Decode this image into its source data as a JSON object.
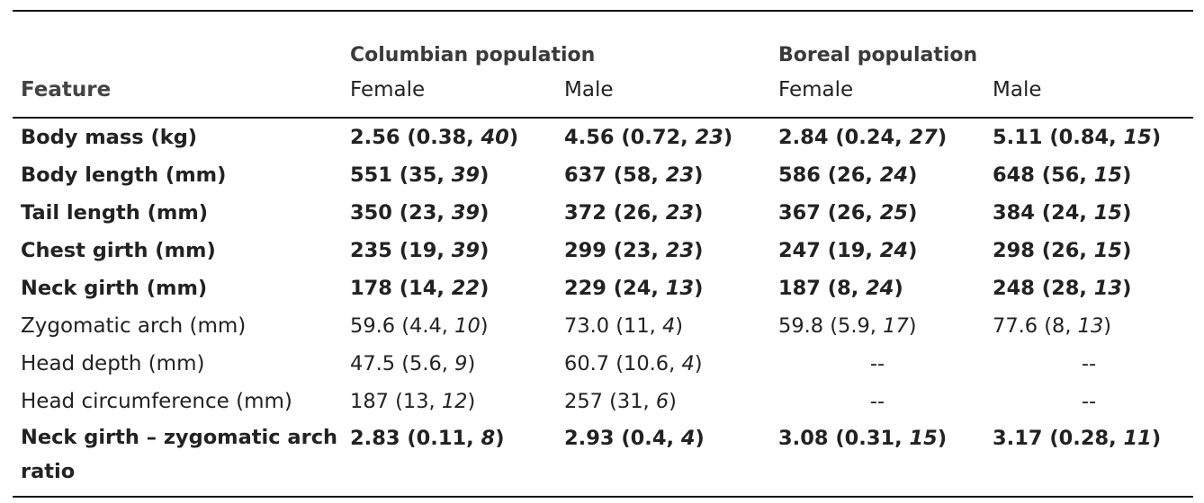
{
  "header": {
    "feature_label": "Feature",
    "groups": [
      "Columbian population",
      "Boreal population"
    ],
    "subheaders": [
      "Female",
      "Male",
      "Female",
      "Male"
    ]
  },
  "rows": [
    {
      "feature": "Body mass (kg)",
      "bold": true,
      "cells": [
        {
          "val": "2.56 (0.38, ",
          "n": "40",
          "end": ")"
        },
        {
          "val": "4.56 (0.72, ",
          "n": "23",
          "end": ")"
        },
        {
          "val": "2.84 (0.24, ",
          "n": "27",
          "end": ")"
        },
        {
          "val": "5.11 (0.84, ",
          "n": "15",
          "end": ")"
        }
      ]
    },
    {
      "feature": "Body length (mm)",
      "bold": true,
      "cells": [
        {
          "val": "551 (35, ",
          "n": "39",
          "end": ")"
        },
        {
          "val": "637 (58, ",
          "n": "23",
          "end": ")"
        },
        {
          "val": "586 (26, ",
          "n": "24",
          "end": ")"
        },
        {
          "val": "648 (56, ",
          "n": "15",
          "end": ")"
        }
      ]
    },
    {
      "feature": "Tail length (mm)",
      "bold": true,
      "cells": [
        {
          "val": "350 (23, ",
          "n": "39",
          "end": ")"
        },
        {
          "val": "372 (26, ",
          "n": "23",
          "end": ")"
        },
        {
          "val": "367 (26, ",
          "n": "25",
          "end": ")"
        },
        {
          "val": "384 (24, ",
          "n": "15",
          "end": ")"
        }
      ]
    },
    {
      "feature": "Chest girth (mm)",
      "bold": true,
      "cells": [
        {
          "val": "235 (19, ",
          "n": "39",
          "end": ")"
        },
        {
          "val": "299 (23, ",
          "n": "23",
          "end": ")"
        },
        {
          "val": "247 (19, ",
          "n": "24",
          "end": ")"
        },
        {
          "val": "298 (26, ",
          "n": "15",
          "end": ")"
        }
      ]
    },
    {
      "feature": "Neck girth (mm)",
      "bold": true,
      "cells": [
        {
          "val": "178 (14, ",
          "n": "22",
          "end": ")"
        },
        {
          "val": "229 (24, ",
          "n": "13",
          "end": ")"
        },
        {
          "val": "187 (8, ",
          "n": "24",
          "end": ")"
        },
        {
          "val": "248 (28, ",
          "n": "13",
          "end": ")"
        }
      ]
    },
    {
      "feature": "Zygomatic arch (mm)",
      "bold": false,
      "cells": [
        {
          "val": "59.6 (4.4, ",
          "n": "10",
          "end": ")"
        },
        {
          "val": "73.0 (11, ",
          "n": "4",
          "end": ")"
        },
        {
          "val": "59.8 (5.9, ",
          "n": "17",
          "end": ")"
        },
        {
          "val": "77.6 (8, ",
          "n": "13",
          "end": ")"
        }
      ]
    },
    {
      "feature": "Head depth (mm)",
      "bold": false,
      "cells": [
        {
          "val": "47.5 (5.6, ",
          "n": "9",
          "end": ")"
        },
        {
          "val": "60.7 (10.6, ",
          "n": "4",
          "end": ")"
        },
        {
          "dash": "--"
        },
        {
          "dash": "--"
        }
      ]
    },
    {
      "feature": "Head circumference (mm)",
      "bold": false,
      "cells": [
        {
          "val": "187 (13, ",
          "n": "12",
          "end": ")"
        },
        {
          "val": "257 (31, ",
          "n": "6",
          "end": ")"
        },
        {
          "dash": "--"
        },
        {
          "dash": "--"
        }
      ]
    },
    {
      "feature": "Neck girth – zygomatic arch ratio",
      "bold": true,
      "cells": [
        {
          "val": "2.83 (0.11, ",
          "n": "8",
          "end": ")"
        },
        {
          "val": "2.93 (0.4, ",
          "n": "4",
          "end": ")"
        },
        {
          "val": "3.08 (0.31, ",
          "n": "15",
          "end": ")"
        },
        {
          "val": "3.17 (0.28, ",
          "n": "11",
          "end": ")"
        }
      ]
    }
  ]
}
